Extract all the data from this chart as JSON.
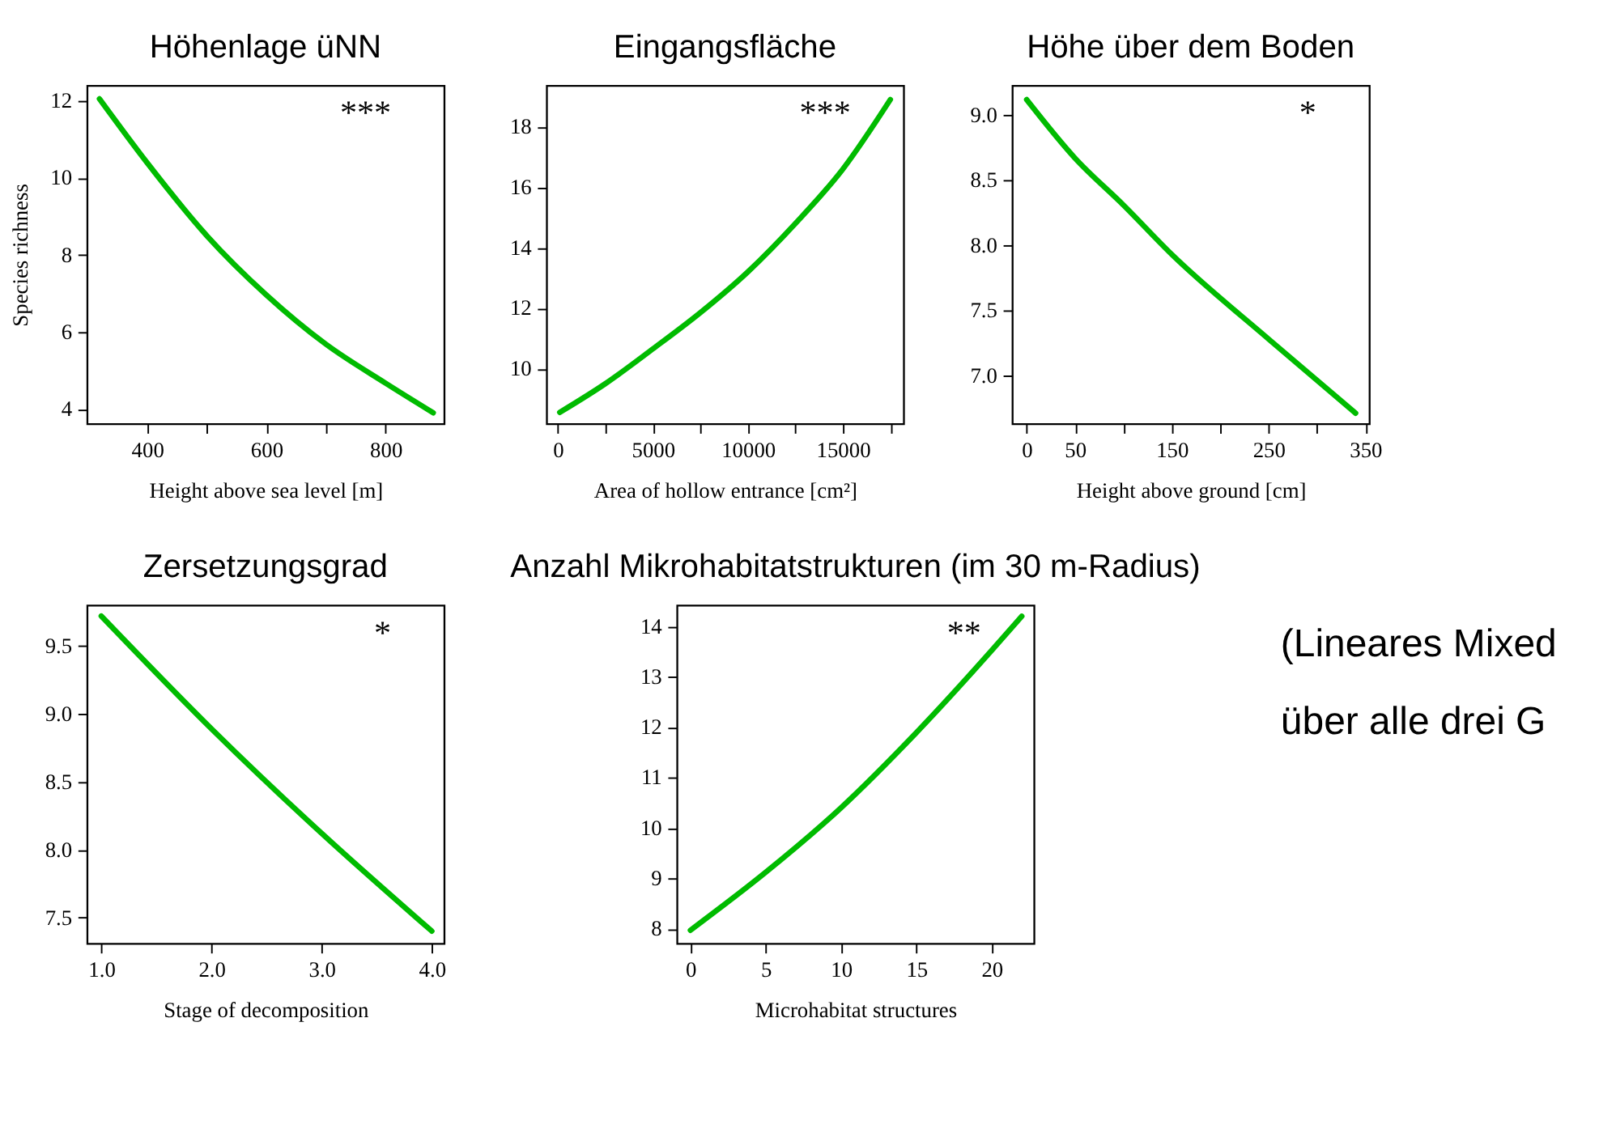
{
  "chart_data": [
    {
      "type": "line",
      "title": "Höhenlage üNN",
      "xlabel": "Height above sea level [m]",
      "ylabel": "Species richness",
      "xlim": [
        299,
        898
      ],
      "ylim": [
        3.62,
        12.4
      ],
      "xticks": [
        400,
        {
          "value": 500,
          "label": null
        },
        600,
        {
          "value": 700,
          "label": null
        },
        800
      ],
      "yticks": [
        4,
        6,
        8,
        10,
        12
      ],
      "annotations": [
        "***"
      ],
      "series": [
        {
          "color": "#00bb00",
          "x": [
            320,
            400,
            500,
            600,
            700,
            800,
            880
          ],
          "values": [
            12.05,
            10.39,
            8.5,
            6.96,
            5.68,
            4.67,
            3.9
          ]
        }
      ]
    },
    {
      "type": "line",
      "title": "Eingangsfläche",
      "xlabel": "Area of hollow entrance [cm²]",
      "xlim": [
        -600,
        18190
      ],
      "ylim": [
        8.18,
        19.37
      ],
      "xticks": [
        0,
        {
          "value": 2500,
          "label": null
        },
        5000,
        {
          "value": 7500,
          "label": null
        },
        10000,
        {
          "value": 12500,
          "label": null
        },
        15000,
        {
          "value": 17500,
          "label": null
        }
      ],
      "yticks": [
        10,
        12,
        14,
        16,
        18
      ],
      "annotations": [
        "***"
      ],
      "series": [
        {
          "color": "#00bb00",
          "x": [
            100,
            2500,
            5000,
            7500,
            10000,
            12500,
            15000,
            17500
          ],
          "values": [
            8.55,
            9.5,
            10.65,
            11.85,
            13.2,
            14.8,
            16.6,
            18.9
          ]
        }
      ]
    },
    {
      "type": "line",
      "title": "Höhe über dem Boden",
      "xlabel": "Height above ground [cm]",
      "xlim": [
        -15,
        354
      ],
      "ylim": [
        6.63,
        9.23
      ],
      "xticks": [
        0,
        50,
        {
          "value": 100,
          "label": null
        },
        150,
        {
          "value": 200,
          "label": null
        },
        250,
        {
          "value": 300,
          "label": null
        },
        350
      ],
      "yticks": [
        {
          "value": 7,
          "label": "7.0"
        },
        7.5,
        {
          "value": 8,
          "label": "8.0"
        },
        8.5,
        {
          "value": 9,
          "label": "9.0"
        }
      ],
      "annotations": [
        "*"
      ],
      "series": [
        {
          "color": "#00bb00",
          "x": [
            0,
            50,
            100,
            150,
            250,
            340
          ],
          "values": [
            9.12,
            8.67,
            8.31,
            7.93,
            7.28,
            6.71
          ]
        }
      ]
    },
    {
      "type": "line",
      "title": "Zersetzungsgrad",
      "xlabel": "Stage of decomposition",
      "xlim": [
        0.87,
        4.11
      ],
      "ylim": [
        7.31,
        9.8
      ],
      "xticks": [
        {
          "value": 1,
          "label": "1.0"
        },
        {
          "value": 2,
          "label": "2.0"
        },
        {
          "value": 3,
          "label": "3.0"
        },
        {
          "value": 4,
          "label": "4.0"
        }
      ],
      "yticks": [
        7.5,
        {
          "value": 8,
          "label": "8.0"
        },
        8.5,
        {
          "value": 9,
          "label": "9.0"
        },
        9.5
      ],
      "annotations": [
        "*"
      ],
      "series": [
        {
          "color": "#00bb00",
          "x": [
            1,
            2,
            3,
            4
          ],
          "values": [
            9.72,
            8.89,
            8.12,
            7.4
          ]
        }
      ]
    },
    {
      "type": "line",
      "title": "Anzahl Mikrohabitatstrukturen (im 30 m-Radius)",
      "xlabel": "Microhabitat structures",
      "xlim": [
        -0.9,
        22.8
      ],
      "ylim": [
        7.71,
        14.42
      ],
      "xticks": [
        0,
        5,
        10,
        15,
        20
      ],
      "yticks": [
        8,
        9,
        10,
        11,
        12,
        13,
        14
      ],
      "annotations": [
        "**"
      ],
      "series": [
        {
          "color": "#00bb00",
          "x": [
            0,
            5,
            10,
            15,
            20,
            22
          ],
          "values": [
            7.97,
            9.12,
            10.4,
            11.89,
            13.52,
            14.2
          ]
        }
      ]
    },
    {
      "type": "other",
      "annotations": [
        "(Lineares Mixed",
        "über alle drei G"
      ]
    }
  ]
}
